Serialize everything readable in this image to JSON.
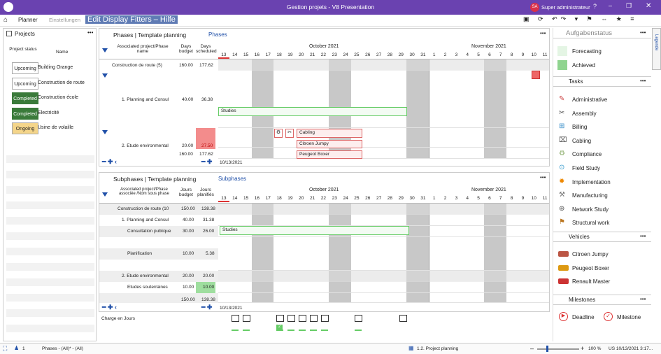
{
  "window": {
    "title": "Gestion projets - V8 Presentation",
    "user_initials": "SA",
    "user": "Super administrateur"
  },
  "menu": {
    "planner": "Planner",
    "settings": "Einstellungen",
    "help": "Edit Display Fitters – Hilfe"
  },
  "projects": {
    "title": "Projects",
    "col_status": "Project status",
    "col_name": "Name",
    "rows": [
      {
        "status": "Upcoming",
        "name": "Building Orange",
        "color": "#ffffff"
      },
      {
        "status": "Upcoming",
        "name": "Construction de route",
        "color": "#ffffff"
      },
      {
        "status": "Completed",
        "name": "Construction école",
        "color": "#3a7a3a"
      },
      {
        "status": "Completed",
        "name": "Electricité",
        "color": "#3a7a3a"
      },
      {
        "status": "Ongoing",
        "name": "Usine de volaille",
        "color": "#f4d58a"
      }
    ]
  },
  "phases": {
    "title": "Phases | Template planning",
    "tab": "Phases",
    "col_assoc": "Associated project/Phase name",
    "col_budget": "Days budget",
    "col_sched": "Days scheduled",
    "month1": "October 2021",
    "month2": "November 2021",
    "days": [
      "13",
      "14",
      "15",
      "16",
      "17",
      "18",
      "19",
      "20",
      "21",
      "22",
      "23",
      "24",
      "25",
      "26",
      "27",
      "28",
      "29",
      "30",
      "31",
      "1",
      "2",
      "3",
      "4",
      "5",
      "6",
      "7",
      "8",
      "9",
      "10",
      "11"
    ],
    "rows": [
      {
        "name": "Construction de route (5)",
        "budget": "160.00",
        "sched": "177.62"
      },
      {
        "name": "1. Planning and Consul",
        "budget": "40.00",
        "sched": "36.38"
      },
      {
        "name": "2. Etude environmental",
        "budget": "20.00",
        "sched": "27.50"
      }
    ],
    "total_budget": "160.00",
    "total_sched": "177.62",
    "bars": {
      "studies": "Studies",
      "cabling": "Cabling",
      "citroen": "Citroen Jumpy",
      "peugeot": "Peugeot Boxer"
    },
    "date": "10/13/2021"
  },
  "subphases": {
    "title": "Subphases | Template planning",
    "tab": "Subphases",
    "col_assoc": "Associated project/Phase associée /Nom sous phase",
    "col_budget": "Jours budget",
    "col_sched": "Jours planifiés",
    "month1": "October 2021",
    "month2": "November 2021",
    "rows": [
      {
        "name": "Construction de route (10",
        "budget": "150.00",
        "sched": "138.38"
      },
      {
        "name": "1. Planning and Consul",
        "budget": "40.00",
        "sched": "31.38"
      },
      {
        "name": "Consultation publique",
        "budget": "30.00",
        "sched": "26.00"
      },
      {
        "name": "Planification",
        "budget": "10.00",
        "sched": "5.38"
      },
      {
        "name": "2. Etude environmental",
        "budget": "20.00",
        "sched": "20.00"
      },
      {
        "name": "Etudes souterraines",
        "budget": "10.00",
        "sched": "10.00"
      }
    ],
    "total_budget": "150.00",
    "total_sched": "138.38",
    "bars": {
      "studies": "Studies"
    },
    "date": "10/13/2021"
  },
  "charge": {
    "label": "Charge en Jours",
    "value": "2"
  },
  "right": {
    "status_title": "Aufgabenstatus",
    "statuses": [
      {
        "label": "Forecasting",
        "color": "#e4f5e4"
      },
      {
        "label": "Achieved",
        "color": "#8fd48f"
      }
    ],
    "tasks_title": "Tasks",
    "tasks": [
      "Administrative",
      "Assembly",
      "Billing",
      "Cabling",
      "Compliance",
      "Field Study",
      "Implementation",
      "Manufacturing",
      "Network Study",
      "Structural work"
    ],
    "vehicles_title": "Vehicles",
    "vehicles": [
      "Citroen Jumpy",
      "Peugeot Boxer",
      "Renault Master"
    ],
    "milestones_title": "Milestones",
    "milestones": [
      "Deadline",
      "Milestone"
    ],
    "vertical_tab": "Legende"
  },
  "status": {
    "count": "1",
    "filter": "Phases - (All)* - (All)",
    "selection": "1.2. Project planning",
    "zoom": "100 %",
    "datetime": "US 10/13/2021 3:17..."
  }
}
